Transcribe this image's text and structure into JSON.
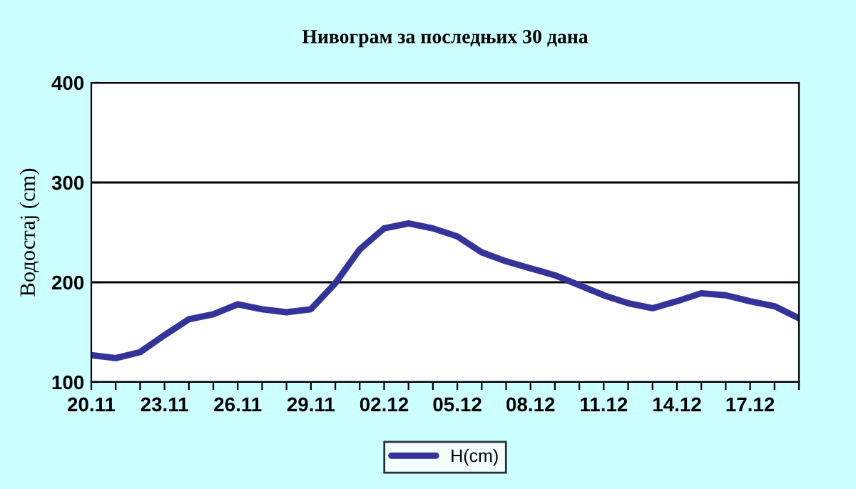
{
  "chart_data": {
    "type": "line",
    "title": "Нивограм за последњих 30 дана",
    "ylabel": "Водостај (cm)",
    "categories": [
      "20.11",
      null,
      null,
      "23.11",
      null,
      null,
      "26.11",
      null,
      null,
      "29.11",
      null,
      null,
      "02.12",
      null,
      null,
      "05.12",
      null,
      null,
      "08.12",
      null,
      null,
      "11.12",
      null,
      null,
      "14.12",
      null,
      null,
      "17.12",
      null,
      null
    ],
    "series": [
      {
        "name": "H(cm)",
        "color": "#333399",
        "values": [
          127,
          124,
          130,
          147,
          163,
          168,
          178,
          173,
          170,
          173,
          199,
          233,
          254,
          259,
          254,
          246,
          230,
          221,
          214,
          207,
          197,
          187,
          179,
          174,
          181,
          189,
          187,
          181,
          176,
          164
        ]
      }
    ],
    "ylim": [
      100,
      400
    ],
    "yticks": [
      100,
      200,
      300,
      400
    ],
    "grid": "y",
    "legend": "bottom",
    "marker": "none",
    "line_style": "solid"
  }
}
